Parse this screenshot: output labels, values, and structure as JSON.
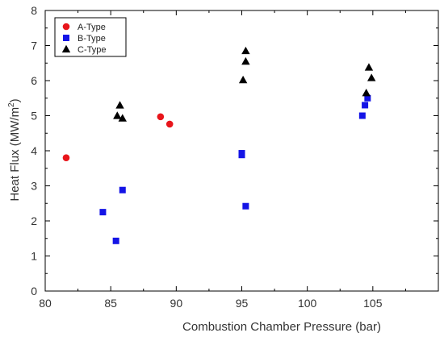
{
  "chart_data": {
    "type": "scatter",
    "xlabel": "Combustion Chamber Pressure (bar)",
    "ylabel_main": "Heat Flux (MW/m",
    "ylabel_sup": "2",
    "ylabel_close": ")",
    "xlim": [
      80,
      110
    ],
    "ylim": [
      0,
      8
    ],
    "xticks": [
      80,
      85,
      90,
      95,
      100,
      105
    ],
    "yticks": [
      0,
      1,
      2,
      3,
      4,
      5,
      6,
      7,
      8
    ],
    "grid": false,
    "legend_position": "top-left",
    "series": [
      {
        "name": "A-Type",
        "marker": "circle",
        "color": "#e8151b",
        "points": [
          {
            "x": 81.6,
            "y": 3.8
          },
          {
            "x": 88.8,
            "y": 4.97
          },
          {
            "x": 89.5,
            "y": 4.76
          }
        ]
      },
      {
        "name": "B-Type",
        "marker": "square",
        "color": "#1414e6",
        "points": [
          {
            "x": 84.4,
            "y": 2.25
          },
          {
            "x": 85.4,
            "y": 1.43
          },
          {
            "x": 85.9,
            "y": 2.88
          },
          {
            "x": 95.0,
            "y": 3.93
          },
          {
            "x": 95.0,
            "y": 3.88
          },
          {
            "x": 95.3,
            "y": 2.42
          },
          {
            "x": 104.2,
            "y": 5.0
          },
          {
            "x": 104.4,
            "y": 5.3
          },
          {
            "x": 104.6,
            "y": 5.5
          }
        ]
      },
      {
        "name": "C-Type",
        "marker": "triangle",
        "color": "#000000",
        "points": [
          {
            "x": 85.5,
            "y": 5.0
          },
          {
            "x": 85.7,
            "y": 5.3
          },
          {
            "x": 85.9,
            "y": 4.93
          },
          {
            "x": 95.1,
            "y": 6.02
          },
          {
            "x": 95.3,
            "y": 6.85
          },
          {
            "x": 95.3,
            "y": 6.55
          },
          {
            "x": 104.5,
            "y": 5.65
          },
          {
            "x": 104.7,
            "y": 6.38
          },
          {
            "x": 104.9,
            "y": 6.08
          }
        ]
      }
    ]
  }
}
